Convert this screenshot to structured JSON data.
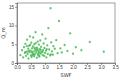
{
  "chart_data": {
    "type": "scatter",
    "x_label": "SWF",
    "y_label": "Q_m",
    "x": [
      0.12,
      0.18,
      0.22,
      0.25,
      0.28,
      0.3,
      0.32,
      0.35,
      0.36,
      0.38,
      0.4,
      0.41,
      0.43,
      0.45,
      0.46,
      0.48,
      0.5,
      0.51,
      0.52,
      0.54,
      0.55,
      0.57,
      0.58,
      0.6,
      0.61,
      0.62,
      0.64,
      0.65,
      0.66,
      0.68,
      0.7,
      0.71,
      0.72,
      0.74,
      0.75,
      0.77,
      0.78,
      0.8,
      0.82,
      0.83,
      0.85,
      0.86,
      0.88,
      0.9,
      0.92,
      0.93,
      0.95,
      0.97,
      0.98,
      1.0,
      1.02,
      1.04,
      1.05,
      1.08,
      1.1,
      1.12,
      1.15,
      1.18,
      1.2,
      1.22,
      1.25,
      1.28,
      1.3,
      1.35,
      1.4,
      1.45,
      1.5,
      1.55,
      1.6,
      1.7,
      1.8,
      1.9,
      2.0,
      2.1,
      2.3,
      2.6,
      0.3,
      0.42,
      0.56,
      0.63,
      0.69,
      0.76,
      0.84,
      0.91,
      1.06,
      0.47,
      0.53,
      0.59,
      0.73,
      0.81,
      1.21,
      3.1,
      0.35,
      0.67,
      0.79
    ],
    "values": [
      2.1,
      3.4,
      1.5,
      4.2,
      2.7,
      5.1,
      1.9,
      3.0,
      6.2,
      2.4,
      3.8,
      1.2,
      4.6,
      2.9,
      7.1,
      3.3,
      2.0,
      5.4,
      1.6,
      3.9,
      2.6,
      4.4,
      6.8,
      3.1,
      1.8,
      5.0,
      2.3,
      3.6,
      8.2,
      2.8,
      4.1,
      1.4,
      3.5,
      5.7,
      2.2,
      3.2,
      4.9,
      1.7,
      3.7,
      6.0,
      2.5,
      4.3,
      3.0,
      7.6,
      2.1,
      3.4,
      5.2,
      1.9,
      4.0,
      2.7,
      6.5,
      3.3,
      1.5,
      4.7,
      2.4,
      9.3,
      3.6,
      2.0,
      14.6,
      5.5,
      3.1,
      2.2,
      4.5,
      3.8,
      6.1,
      2.6,
      11.2,
      3.9,
      2.8,
      4.8,
      3.2,
      7.9,
      2.5,
      4.2,
      3.4,
      5.6,
      2.9,
      3.2,
      2.1,
      4.0,
      3.3,
      2.6,
      3.5,
      2.9,
      3.7,
      4.8,
      3.0,
      2.4,
      3.9,
      2.8,
      2.3,
      3.0,
      4.5,
      5.3,
      2.0
    ],
    "color": "#3cb44b",
    "marker": "circle",
    "xlim": [
      0,
      3.5
    ],
    "xticks": [
      {
        "value": 0,
        "label": "0.0"
      },
      0.5,
      {
        "value": 1,
        "label": "1.0"
      },
      1.5,
      {
        "value": 2,
        "label": "2.0"
      },
      2.5,
      {
        "value": 3,
        "label": "3.0"
      },
      3.5
    ],
    "ylim": [
      0,
      16
    ],
    "yticks": [
      0,
      5,
      10,
      15
    ],
    "grid": false
  }
}
